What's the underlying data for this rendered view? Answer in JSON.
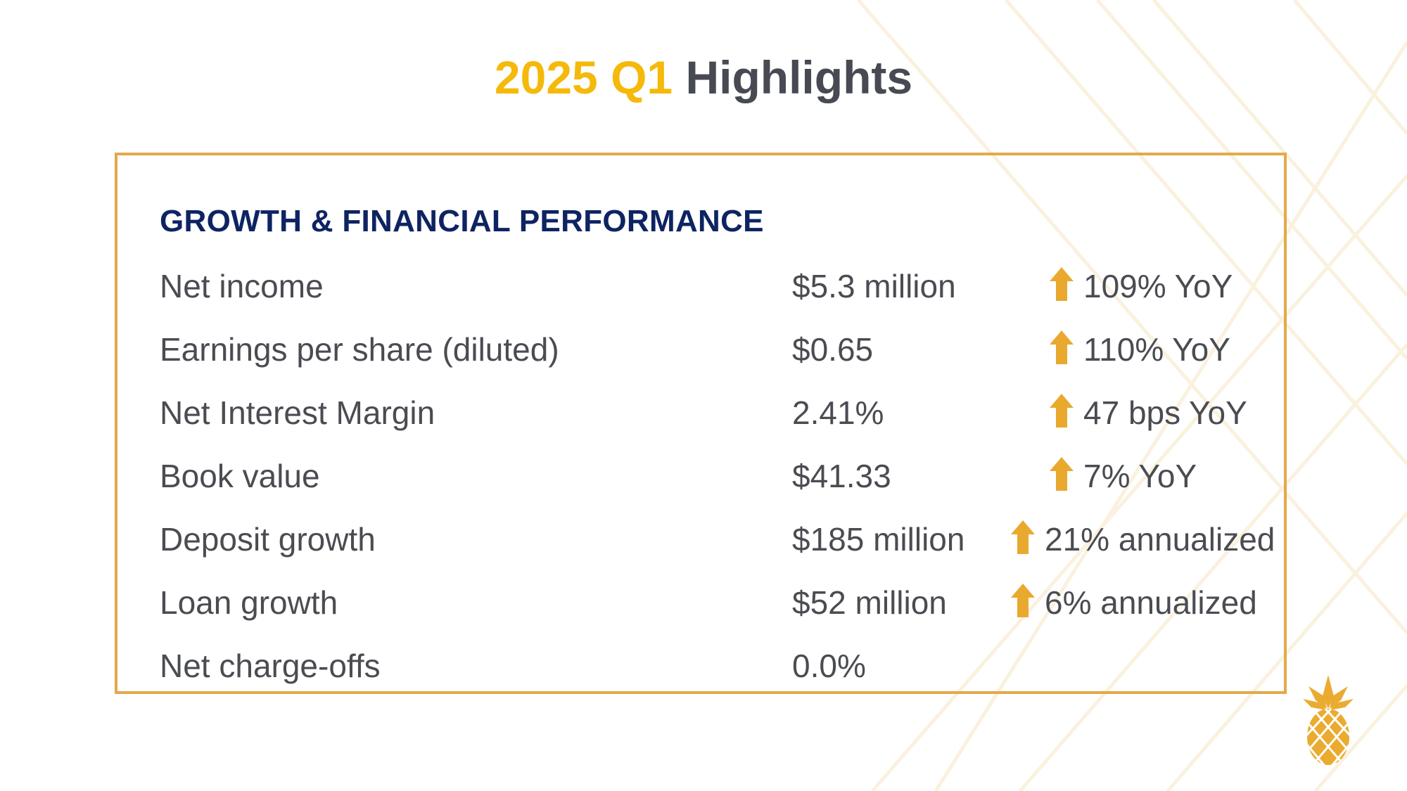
{
  "title": {
    "accent": "2025 Q1",
    "main": "Highlights"
  },
  "section": {
    "heading": "GROWTH & FINANCIAL PERFORMANCE",
    "rows": [
      {
        "label": "Net income",
        "value": "$5.3 million",
        "change": "109% YoY",
        "arrow": "up-arrow-icon"
      },
      {
        "label": "Earnings per share (diluted)",
        "value": "$0.65",
        "change": "110% YoY",
        "arrow": "up-arrow-icon"
      },
      {
        "label": "Net Interest Margin",
        "value": "2.41%",
        "change": "47 bps YoY",
        "arrow": "up-arrow-icon"
      },
      {
        "label": "Book value",
        "value": "$41.33",
        "change": "7% YoY",
        "arrow": "up-arrow-icon"
      },
      {
        "label": "Deposit growth",
        "value": "$185 million",
        "change": "21% annualized",
        "arrow": "up-arrow-icon"
      },
      {
        "label": "Loan growth",
        "value": "$52 million",
        "change": "6% annualized",
        "arrow": "up-arrow-icon"
      },
      {
        "label": "Net charge-offs",
        "value": "0.0%",
        "change": null
      }
    ]
  },
  "colors": {
    "accent": "#F5B90A",
    "border": "#E2A94C",
    "arrow": "#E9A92E",
    "heading": "#0E2462",
    "text": "#4a4c52"
  }
}
